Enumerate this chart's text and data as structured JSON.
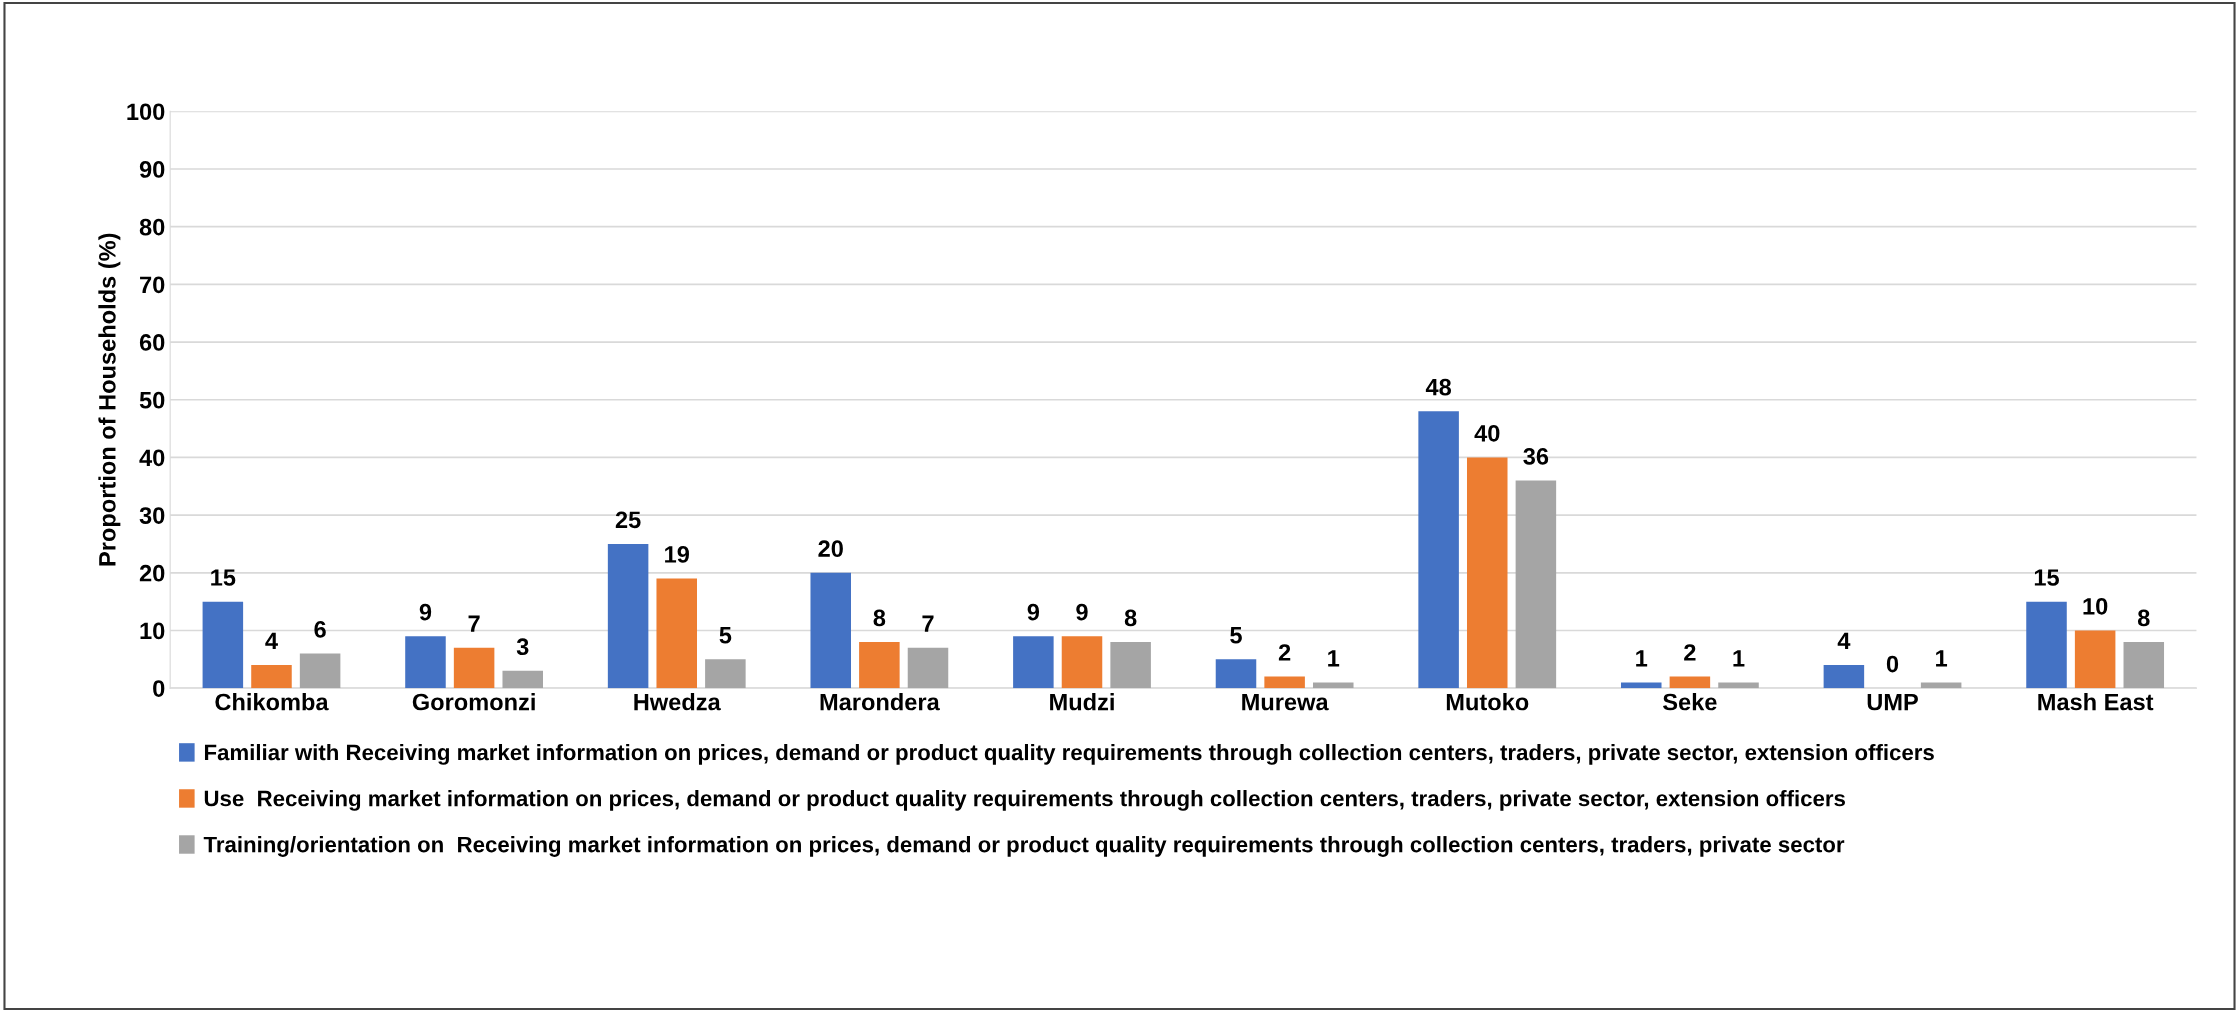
{
  "chart_data": {
    "type": "bar",
    "ylabel": "Proportion of Households (%)",
    "categories": [
      "Chikomba",
      "Goromonzi",
      "Hwedza",
      "Marondera",
      "Mudzi",
      "Murewa",
      "Mutoko",
      "Seke",
      "UMP",
      "Mash East"
    ],
    "series": [
      {
        "name": "Familiar with Receiving market information on prices, demand or product quality requirements through collection centers, traders, private sector, extension officers",
        "color": "#4472c4",
        "values": [
          15,
          9,
          25,
          20,
          9,
          5,
          48,
          1,
          4,
          15
        ]
      },
      {
        "name": "Use  Receiving market information on prices, demand or product quality requirements through collection centers, traders, private sector, extension officers",
        "color": "#ed7d31",
        "values": [
          4,
          7,
          19,
          8,
          9,
          2,
          40,
          2,
          0,
          10
        ]
      },
      {
        "name": "Training/orientation on  Receiving market information on prices, demand or product quality requirements through collection centers, traders, private sector",
        "color": "#a5a5a5",
        "values": [
          6,
          3,
          5,
          7,
          8,
          1,
          36,
          1,
          1,
          8
        ]
      }
    ],
    "ylim": [
      0,
      100
    ],
    "yticks": [
      0,
      10,
      20,
      30,
      40,
      50,
      60,
      70,
      80,
      90,
      100
    ],
    "grid": "y",
    "legend": "bottom",
    "data_labels": true
  }
}
